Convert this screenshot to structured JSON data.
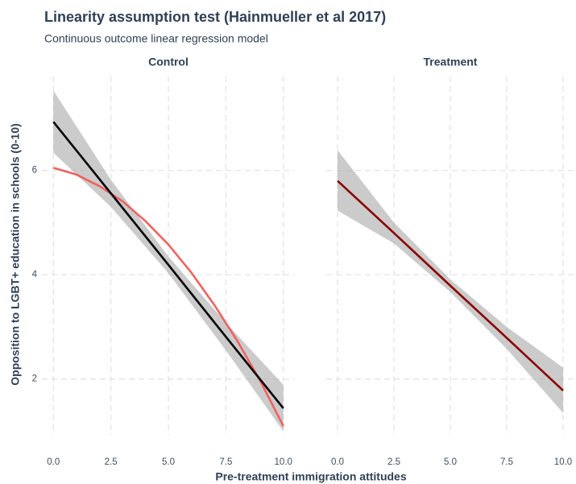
{
  "title": "Linearity assumption test (Hainmueller et al 2017)",
  "subtitle": "Continuous outcome linear regression model",
  "x_label": "Pre-treatment immigration attitudes",
  "y_label": "Opposition to LGBT+ education in schools (0-10)",
  "chart_data": [
    {
      "type": "line",
      "title": "Control",
      "xlim": [
        -0.5,
        10.5
      ],
      "ylim": [
        0.93,
        7.8
      ],
      "xticks": [
        {
          "value": 0,
          "label": "0.0"
        },
        2.5,
        {
          "value": 5,
          "label": "5.0"
        },
        7.5,
        {
          "value": 10,
          "label": "10.0"
        }
      ],
      "yticks": [
        2,
        4,
        6
      ],
      "grid": true,
      "series": [
        {
          "color": "#f0625f",
          "x": [
            0,
            1,
            2,
            3,
            4,
            5,
            6,
            7,
            8,
            9,
            10
          ],
          "values": [
            6.05,
            5.92,
            5.7,
            5.41,
            5.03,
            4.58,
            4.04,
            3.42,
            2.73,
            1.96,
            1.1
          ]
        },
        {
          "color": "#000000",
          "x": [
            0,
            2.5,
            5,
            7.5,
            10
          ],
          "values": [
            6.93,
            5.56,
            4.19,
            2.81,
            1.44
          ],
          "lower": [
            6.34,
            5.3,
            4.03,
            2.55,
            1.0
          ],
          "upper": [
            7.53,
            5.82,
            4.35,
            3.08,
            1.89
          ]
        }
      ]
    },
    {
      "type": "line",
      "title": "Treatment",
      "xlim": [
        -0.5,
        10.5
      ],
      "ylim": [
        0.93,
        7.8
      ],
      "xticks": [
        {
          "value": 0,
          "label": "0.0"
        },
        2.5,
        {
          "value": 5,
          "label": "5.0"
        },
        7.5,
        {
          "value": 10,
          "label": "10.0"
        }
      ],
      "grid": true,
      "series": [
        {
          "color": "#8b0000",
          "x": [
            0,
            2.5,
            5,
            7.5,
            10
          ],
          "values": [
            5.8,
            4.8,
            3.79,
            2.79,
            1.78
          ],
          "lower": [
            5.23,
            4.6,
            3.67,
            2.58,
            1.35
          ],
          "upper": [
            6.39,
            5.0,
            3.91,
            3.0,
            2.22
          ]
        }
      ]
    }
  ]
}
